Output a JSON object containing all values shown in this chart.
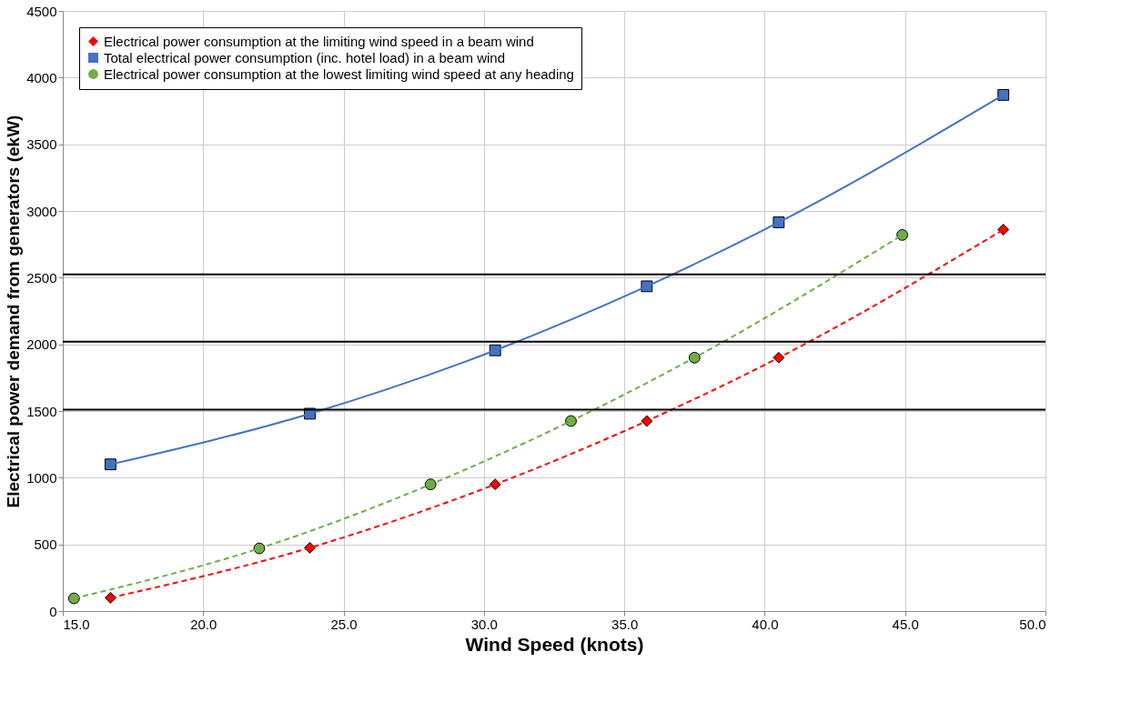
{
  "chart_data": {
    "type": "line",
    "xlabel": "Wind Speed (knots)",
    "ylabel": "Electrical power demand from generators (ekW)",
    "xlim": [
      15,
      50
    ],
    "ylim": [
      0,
      4500
    ],
    "xticks": [
      {
        "value": 15,
        "label": "15.0"
      },
      {
        "value": 20,
        "label": "20.0"
      },
      {
        "value": 25,
        "label": "25.0"
      },
      {
        "value": 30,
        "label": "30.0"
      },
      {
        "value": 35,
        "label": "35.0"
      },
      {
        "value": 40,
        "label": "40.0"
      },
      {
        "value": 45,
        "label": "45.0"
      },
      {
        "value": 50,
        "label": "50.0"
      }
    ],
    "yticks": [
      0,
      500,
      {
        "value": 1000,
        "label": "1000"
      },
      {
        "value": 1500,
        "label": "1500"
      },
      {
        "value": 2000,
        "label": "2000"
      },
      {
        "value": 2500,
        "label": "2500"
      },
      {
        "value": 3000,
        "label": "3000"
      },
      {
        "value": 3500,
        "label": "3500"
      },
      {
        "value": 4000,
        "label": "4000"
      },
      {
        "value": 4500,
        "label": "4500"
      }
    ],
    "grid": true,
    "legend": "top left",
    "series": [
      {
        "name": "Electrical power consumption at the limiting wind speed in a beam wind",
        "color": "#ff0000",
        "marker": "diamond",
        "line_style": "dashed",
        "x": [
          16.7,
          23.8,
          30.4,
          35.8,
          40.5,
          48.5
        ],
        "values": [
          100,
          475,
          950,
          1425,
          1900,
          2860
        ]
      },
      {
        "name": "Total electrical power consumption (inc. hotel load) in a beam wind",
        "color": "#4472c4",
        "marker": "square",
        "line_style": "solid",
        "x": [
          16.7,
          23.8,
          30.4,
          35.8,
          40.5,
          48.5
        ],
        "values": [
          1100,
          1480,
          1955,
          2435,
          2915,
          3870
        ]
      },
      {
        "name": "Electrical power consumption at the lowest limiting wind speed at any heading",
        "color": "#70ad47",
        "marker": "circle",
        "line_style": "dashed",
        "x": [
          15.4,
          22.0,
          28.1,
          33.1,
          37.5,
          44.9
        ],
        "values": [
          95,
          470,
          950,
          1425,
          1900,
          2820
        ]
      }
    ],
    "ref_lines": [
      {
        "axis": "y",
        "value": 1510,
        "color": "#000000"
      },
      {
        "axis": "y",
        "value": 2020,
        "color": "#000000"
      },
      {
        "axis": "y",
        "value": 2525,
        "color": "#000000"
      }
    ]
  }
}
